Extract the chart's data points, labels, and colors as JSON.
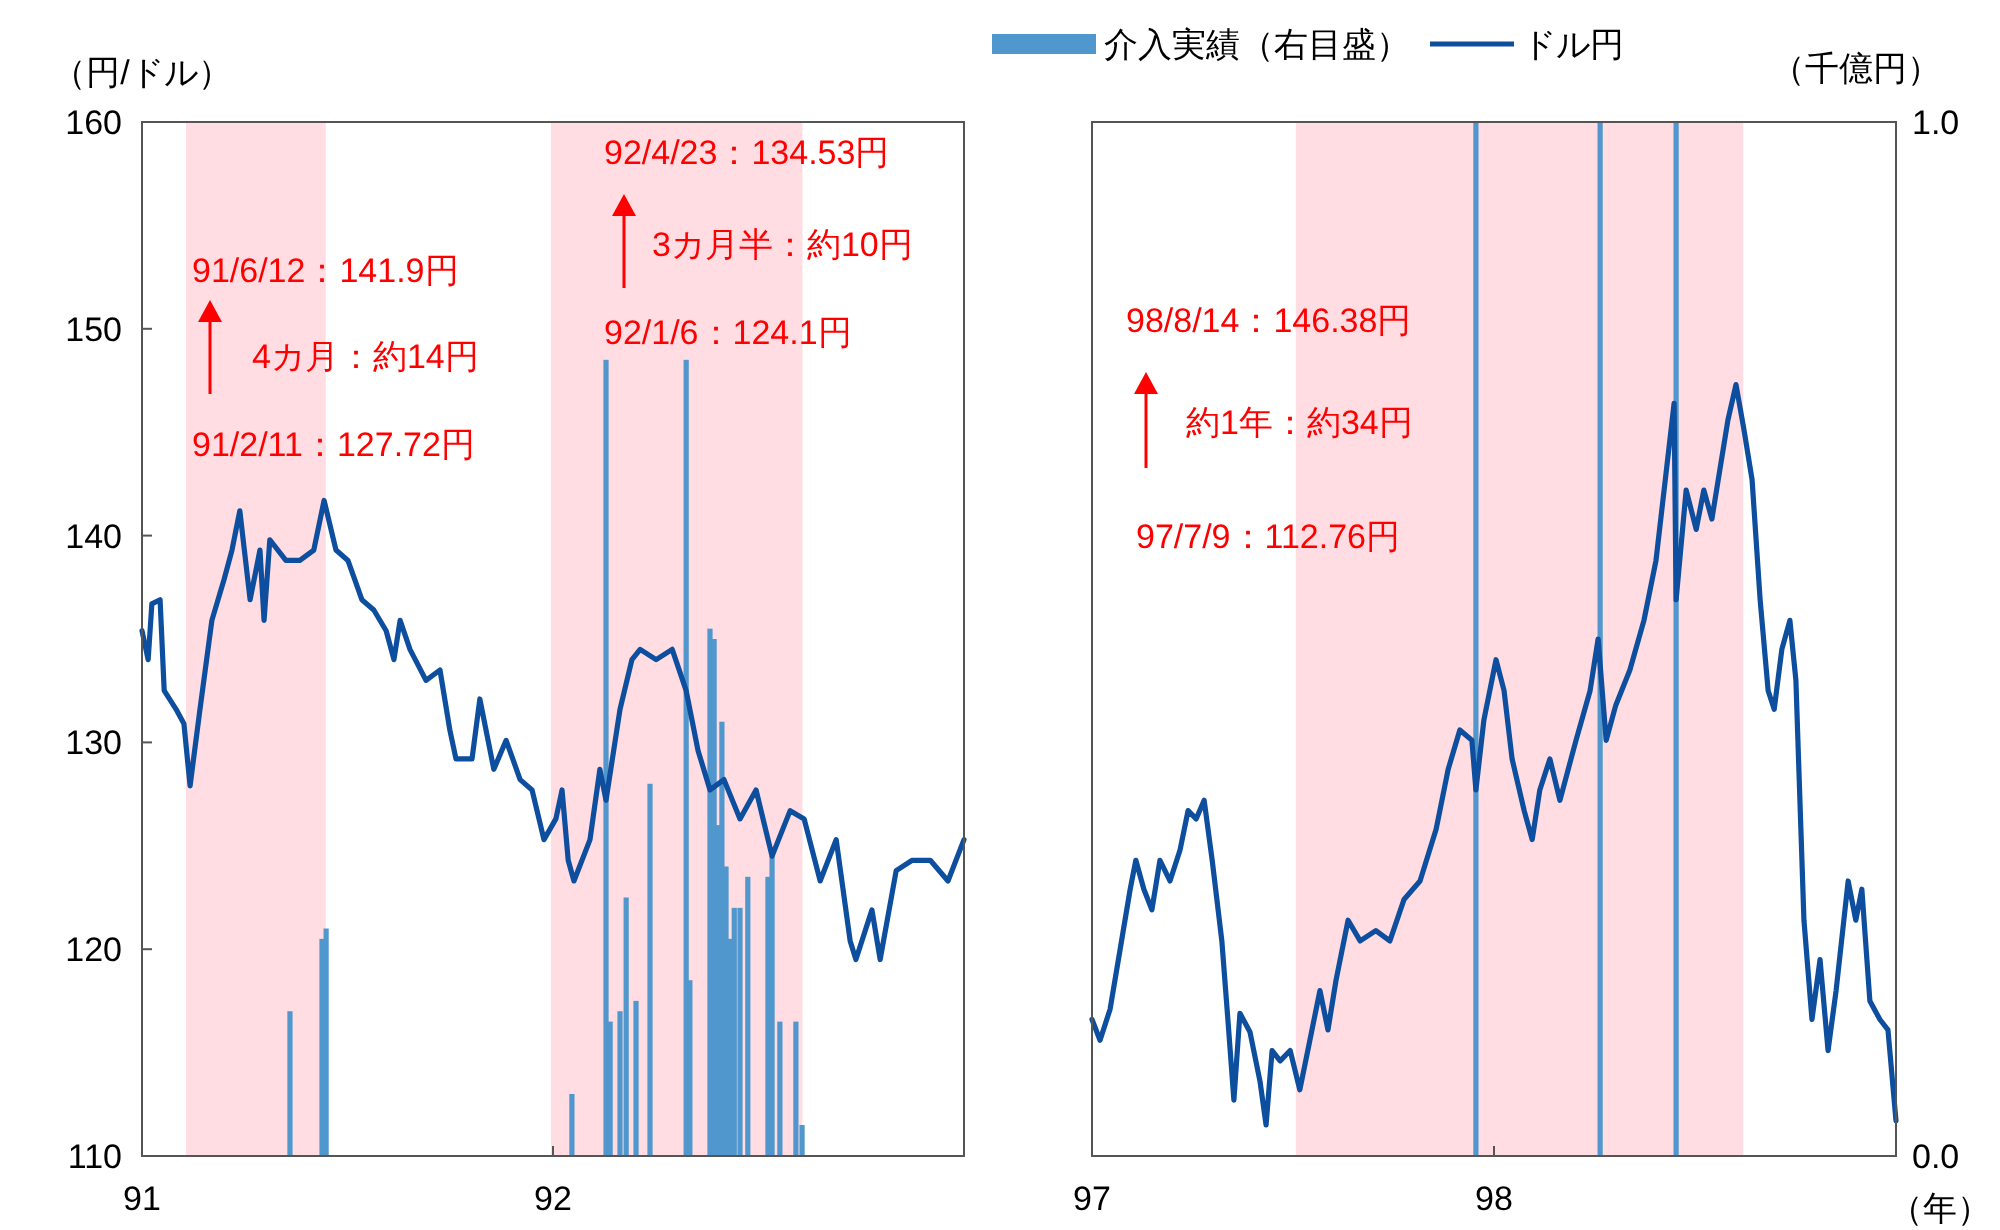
{
  "chart_data": [
    {
      "type": "line",
      "ylabel": "（円/ドル）",
      "xlim": [
        91,
        93
      ],
      "xticks": [
        91,
        92,
        {
          "value": 93,
          "label": null
        }
      ],
      "ylim": [
        110,
        160
      ],
      "yticks": [
        110,
        120,
        130,
        140,
        150,
        160
      ],
      "y2lim": [
        0,
        1
      ],
      "bands": [
        {
          "axis": "x",
          "from": 91.107,
          "to": 91.447,
          "color": "#ffdde2"
        },
        {
          "axis": "x",
          "from": 91.995,
          "to": 92.607,
          "color": "#ffdde2"
        }
      ],
      "annotations": [
        "91/6/12：141.9円",
        "4カ月：約14円",
        "91/2/11：127.72円",
        "92/4/23：134.53円",
        "3カ月半：約10円",
        "92/1/6：124.1円"
      ],
      "series": [
        {
          "type": "bar",
          "axis": "y2",
          "color": "#4f97cc",
          "x": [
            91.36,
            91.438,
            91.448,
            92.046,
            92.129,
            92.139,
            92.163,
            92.178,
            92.202,
            92.236,
            92.324,
            92.333,
            92.382,
            92.392,
            92.402,
            92.411,
            92.421,
            92.431,
            92.441,
            92.455,
            92.474,
            92.523,
            92.533,
            92.552,
            92.591,
            92.606
          ],
          "values": [
            0.14,
            0.21,
            0.22,
            0.06,
            0.77,
            0.13,
            0.14,
            0.25,
            0.15,
            0.36,
            0.77,
            0.17,
            0.51,
            0.5,
            0.32,
            0.42,
            0.28,
            0.21,
            0.24,
            0.24,
            0.27,
            0.27,
            0.29,
            0.13,
            0.13,
            0.03
          ]
        },
        {
          "color": "#0d4f9e",
          "x": [
            91.0,
            91.015,
            91.024,
            91.044,
            91.054,
            91.083,
            91.102,
            91.117,
            91.141,
            91.17,
            91.2,
            91.219,
            91.238,
            91.263,
            91.287,
            91.297,
            91.311,
            91.35,
            91.384,
            91.418,
            91.443,
            91.472,
            91.501,
            91.535,
            91.564,
            91.594,
            91.613,
            91.628,
            91.652,
            91.691,
            91.725,
            91.749,
            91.764,
            91.803,
            91.822,
            91.856,
            91.886,
            91.92,
            91.949,
            91.978,
            92.007,
            92.022,
            92.037,
            92.051,
            92.09,
            92.114,
            92.129,
            92.163,
            92.192,
            92.212,
            92.251,
            92.29,
            92.324,
            92.353,
            92.382,
            92.416,
            92.455,
            92.494,
            92.533,
            92.577,
            92.611,
            92.65,
            92.689,
            92.723,
            92.737,
            92.776,
            92.796,
            92.835,
            92.874,
            92.918,
            92.961,
            93.0
          ],
          "values": [
            135.4,
            134.0,
            136.7,
            136.9,
            132.5,
            131.6,
            130.9,
            127.9,
            131.6,
            135.9,
            137.9,
            139.3,
            141.2,
            136.9,
            139.3,
            135.9,
            139.8,
            138.8,
            138.8,
            139.3,
            141.7,
            139.3,
            138.8,
            136.9,
            136.4,
            135.4,
            134.0,
            135.9,
            134.5,
            133.0,
            133.5,
            130.6,
            129.2,
            129.2,
            132.1,
            128.7,
            130.1,
            128.2,
            127.7,
            125.3,
            126.3,
            127.7,
            124.3,
            123.3,
            125.3,
            128.7,
            127.2,
            131.6,
            134.0,
            134.5,
            134.0,
            134.5,
            132.5,
            129.6,
            127.7,
            128.2,
            126.3,
            127.7,
            124.5,
            126.7,
            126.3,
            123.3,
            125.3,
            120.4,
            119.5,
            121.9,
            119.5,
            123.8,
            124.3,
            124.3,
            123.3,
            125.3
          ]
        }
      ]
    },
    {
      "type": "line",
      "xlabel": "（年）",
      "y2label": "（千億円）",
      "xlim": [
        97,
        99
      ],
      "xticks": [
        97,
        98,
        {
          "value": 99,
          "label": null
        }
      ],
      "ylim": [
        110,
        160
      ],
      "y2lim": [
        0,
        1
      ],
      "y2ticks": [
        {
          "value": 0,
          "label": "0.0"
        },
        {
          "value": 1,
          "label": "1.0"
        }
      ],
      "legend": "top",
      "bands": [
        {
          "axis": "x",
          "from": 97.507,
          "to": 98.62,
          "color": "#ffdde2"
        }
      ],
      "annotations": [
        "98/8/14：146.38円",
        "約1年：約34円",
        "97/7/9：112.76円"
      ],
      "series": [
        {
          "type": "bar",
          "axis": "y2",
          "name": "介入実績（右目盛）",
          "color": "#4f97cc",
          "x": [
            97.955,
            98.264,
            98.453
          ],
          "values": [
            1,
            1,
            1
          ]
        },
        {
          "name": "ドル円",
          "color": "#0d4f9e",
          "x": [
            97.0,
            97.02,
            97.045,
            97.07,
            97.095,
            97.109,
            97.129,
            97.149,
            97.169,
            97.194,
            97.219,
            97.239,
            97.259,
            97.279,
            97.299,
            97.323,
            97.338,
            97.353,
            97.368,
            97.393,
            97.418,
            97.433,
            97.448,
            97.468,
            97.493,
            97.517,
            97.542,
            97.567,
            97.587,
            97.607,
            97.637,
            97.667,
            97.706,
            97.741,
            97.776,
            97.816,
            97.856,
            97.886,
            97.915,
            97.945,
            97.955,
            97.975,
            98.005,
            98.025,
            98.045,
            98.075,
            98.095,
            98.114,
            98.139,
            98.164,
            98.204,
            98.239,
            98.259,
            98.279,
            98.303,
            98.338,
            98.373,
            98.403,
            98.448,
            98.453,
            98.478,
            98.503,
            98.522,
            98.542,
            98.562,
            98.582,
            98.602,
            98.622,
            98.642,
            98.662,
            98.682,
            98.697,
            98.716,
            98.736,
            98.751,
            98.771,
            98.791,
            98.811,
            98.831,
            98.851,
            98.881,
            98.9,
            98.915,
            98.935,
            98.96,
            98.98,
            99.0
          ],
          "values": [
            116.6,
            115.6,
            117.1,
            120.0,
            122.9,
            124.3,
            122.9,
            121.9,
            124.3,
            123.3,
            124.8,
            126.7,
            126.3,
            127.2,
            124.3,
            120.4,
            116.6,
            112.7,
            116.9,
            116.0,
            113.6,
            111.5,
            115.1,
            114.6,
            115.1,
            113.2,
            115.6,
            118.0,
            116.1,
            118.5,
            121.4,
            120.4,
            120.9,
            120.4,
            122.4,
            123.3,
            125.8,
            128.7,
            130.6,
            130.1,
            127.7,
            131.1,
            134.0,
            132.5,
            129.2,
            126.7,
            125.3,
            127.7,
            129.2,
            127.2,
            130.1,
            132.5,
            135.0,
            130.1,
            131.8,
            133.5,
            135.9,
            138.8,
            146.4,
            136.9,
            142.2,
            140.3,
            142.2,
            140.8,
            143.2,
            145.6,
            147.3,
            145.1,
            142.7,
            136.9,
            132.5,
            131.6,
            134.5,
            135.9,
            133.0,
            121.4,
            116.6,
            119.5,
            115.1,
            118.0,
            123.3,
            121.4,
            122.9,
            117.5,
            116.6,
            116.1,
            111.7
          ]
        }
      ]
    }
  ]
}
